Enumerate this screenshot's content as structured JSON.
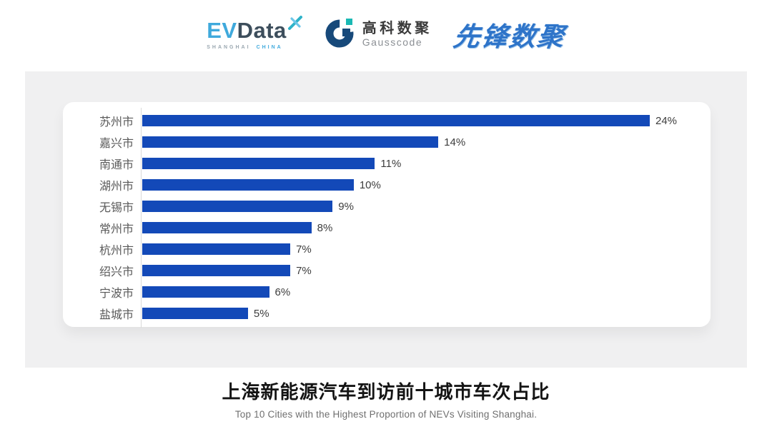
{
  "header": {
    "evdata": {
      "ev": "EV",
      "data": "Data",
      "sub_left": "SHANGHAI",
      "sub_right": "CHINA"
    },
    "gausscode": {
      "cn": "高科数聚",
      "en": "Gausscode"
    },
    "xianfeng": {
      "text": "先锋数聚"
    }
  },
  "chart_data": {
    "type": "bar",
    "orientation": "horizontal",
    "categories": [
      "苏州市",
      "嘉兴市",
      "南通市",
      "湖州市",
      "无锡市",
      "常州市",
      "杭州市",
      "绍兴市",
      "宁波市",
      "盐城市"
    ],
    "values": [
      24,
      14,
      11,
      10,
      9,
      8,
      7,
      7,
      6,
      5
    ],
    "value_labels": [
      "24%",
      "14%",
      "11%",
      "10%",
      "9%",
      "8%",
      "7%",
      "7%",
      "6%",
      "5%"
    ],
    "title": "上海新能源汽车到访前十城市车次占比",
    "subtitle": "Top 10 Cities with the Highest Proportion of  NEVs Visiting Shanghai.",
    "xlabel": "",
    "ylabel": "",
    "xlim": [
      0,
      24
    ],
    "grid": false,
    "legend": false,
    "bar_color": "#1349b8"
  },
  "colors": {
    "bar": "#1349b8",
    "panel_grey": "#f0f0f1",
    "card_white": "#ffffff",
    "evdata_blue": "#3fa9dc",
    "evdata_dark": "#3d4e5c",
    "gauss_navy": "#17497a",
    "gauss_teal": "#1ab9b4",
    "xianfeng_blue": "#2e74c9",
    "category_label": "#595959",
    "value_label": "#3d3d3d"
  }
}
